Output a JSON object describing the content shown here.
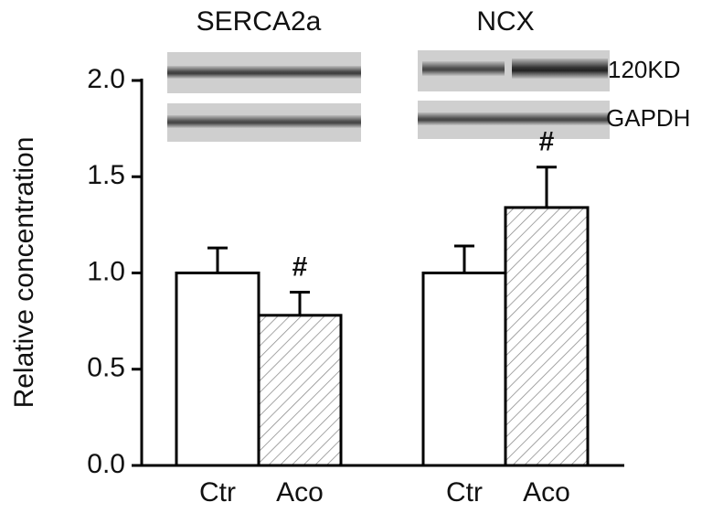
{
  "chart_data": {
    "type": "bar",
    "y_label": "Relative concentration",
    "group_labels": [
      "SERCA2a",
      "NCX"
    ],
    "categories": [
      "Ctr",
      "Aco",
      "Ctr",
      "Aco"
    ],
    "values": [
      1.0,
      0.78,
      1.0,
      1.34
    ],
    "errors": [
      0.13,
      0.12,
      0.14,
      0.21
    ],
    "fills": [
      "white",
      "hatch",
      "white",
      "hatch"
    ],
    "annotations": [
      {
        "text": "#",
        "category_index": 1
      },
      {
        "text": "#",
        "category_index": 3
      }
    ],
    "blot_labels": [
      "120KD",
      "GAPDH"
    ],
    "ylim": [
      0,
      2.0
    ],
    "yticks": [
      {
        "value": 0,
        "label": "0.0"
      },
      0.5,
      {
        "value": 1,
        "label": "1.0"
      },
      1.5,
      {
        "value": 2,
        "label": "2.0"
      }
    ]
  }
}
